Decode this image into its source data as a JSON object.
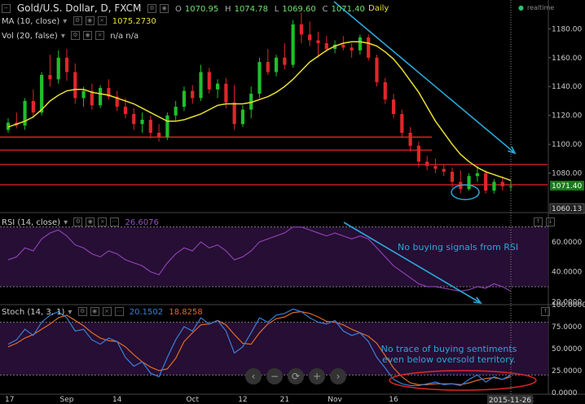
{
  "header": {
    "collapse_icon": "minus-box-icon",
    "symbol_title": "Gold/U.S. Dollar, D, FXCM",
    "ohlc": [
      {
        "label": "O",
        "value": "1070.95"
      },
      {
        "label": "H",
        "value": "1074.78"
      },
      {
        "label": "L",
        "value": "1069.60"
      },
      {
        "label": "C",
        "value": "1071.40"
      }
    ],
    "interval_label": "Daily",
    "realtime_label": "realtime",
    "realtime_color": "#2fbf71"
  },
  "indicators": {
    "ma_label": "MA (10, close)",
    "ma_value": "1075.2730",
    "vol_label": "Vol (20, false)",
    "vol_value": "n/a n/a",
    "rsi_label": "RSI (14, close)",
    "rsi_value": "26.6076",
    "stoch_label": "Stoch (14, 3, 1)",
    "stoch_k": "20.1502",
    "stoch_d": "18.8258"
  },
  "price_axis": {
    "ticks": [
      "1180.00",
      "1160.00",
      "1140.00",
      "1120.00",
      "1100.00",
      "1080.00"
    ],
    "last_price": "1071.40",
    "low_marker": "1060.13"
  },
  "rsi_axis": {
    "ticks": [
      "60.0000",
      "40.0000",
      "20.0000"
    ]
  },
  "stoch_axis": {
    "ticks": [
      "100.0000",
      "75.0000",
      "50.0000",
      "25.0000",
      "0.0000"
    ]
  },
  "time_axis": {
    "ticks": [
      "17",
      "Sep",
      "14",
      "Oct",
      "12",
      "21",
      "Nov",
      "16",
      "ec"
    ],
    "cursor_date": "2015-11-26"
  },
  "annotations": {
    "rsi_note": "No buying signals from RSI",
    "stoch_note_1": "No trace of buying sentiments",
    "stoch_note_2": "even below oversold territory."
  },
  "nav_buttons": [
    {
      "name": "scroll-left-button",
      "glyph": "‹"
    },
    {
      "name": "zoom-out-button",
      "glyph": "−"
    },
    {
      "name": "reset-button",
      "glyph": "⟳"
    },
    {
      "name": "zoom-in-button",
      "glyph": "+"
    },
    {
      "name": "scroll-right-button",
      "glyph": "›"
    }
  ],
  "colors": {
    "bull": "#1fbf2a",
    "bear": "#e0262a",
    "ma": "#e8e030",
    "rsi": "#8b3fb0",
    "stoch_k": "#3a7fd8",
    "stoch_d": "#e06a2a",
    "annotation": "#2aa7d8",
    "sr_line": "#e0262a",
    "band": "#2a0f3a",
    "last_price_tag": "#1a7a1a"
  },
  "chart_data": {
    "type": "candlestick",
    "title": "Gold/U.S. Dollar, D, FXCM",
    "ylim": [
      1055,
      1192
    ],
    "support_resistance": [
      1105,
      1096,
      1086,
      1072
    ],
    "candles": [
      [
        1110,
        1118,
        1108,
        1115
      ],
      [
        1115,
        1122,
        1111,
        1113
      ],
      [
        1113,
        1132,
        1110,
        1130
      ],
      [
        1130,
        1138,
        1118,
        1122
      ],
      [
        1122,
        1150,
        1120,
        1148
      ],
      [
        1148,
        1162,
        1140,
        1145
      ],
      [
        1145,
        1165,
        1142,
        1160
      ],
      [
        1160,
        1166,
        1144,
        1150
      ],
      [
        1150,
        1156,
        1128,
        1132
      ],
      [
        1132,
        1140,
        1126,
        1137
      ],
      [
        1137,
        1142,
        1124,
        1127
      ],
      [
        1127,
        1141,
        1125,
        1139
      ],
      [
        1139,
        1145,
        1131,
        1133
      ],
      [
        1133,
        1137,
        1123,
        1126
      ],
      [
        1126,
        1132,
        1118,
        1121
      ],
      [
        1121,
        1125,
        1110,
        1114
      ],
      [
        1114,
        1122,
        1108,
        1117
      ],
      [
        1117,
        1120,
        1104,
        1108
      ],
      [
        1108,
        1114,
        1102,
        1105
      ],
      [
        1105,
        1122,
        1103,
        1120
      ],
      [
        1120,
        1130,
        1116,
        1126
      ],
      [
        1126,
        1140,
        1123,
        1137
      ],
      [
        1137,
        1141,
        1128,
        1132
      ],
      [
        1132,
        1155,
        1130,
        1150
      ],
      [
        1150,
        1153,
        1135,
        1138
      ],
      [
        1138,
        1145,
        1132,
        1142
      ],
      [
        1142,
        1146,
        1125,
        1129
      ],
      [
        1129,
        1141,
        1110,
        1114
      ],
      [
        1114,
        1127,
        1112,
        1124
      ],
      [
        1124,
        1140,
        1118,
        1135
      ],
      [
        1135,
        1160,
        1132,
        1157
      ],
      [
        1157,
        1166,
        1148,
        1150
      ],
      [
        1150,
        1162,
        1147,
        1160
      ],
      [
        1160,
        1170,
        1152,
        1155
      ],
      [
        1155,
        1186,
        1153,
        1183
      ],
      [
        1183,
        1191,
        1170,
        1176
      ],
      [
        1176,
        1185,
        1168,
        1172
      ],
      [
        1172,
        1178,
        1160,
        1170
      ],
      [
        1170,
        1175,
        1164,
        1166
      ],
      [
        1166,
        1172,
        1163,
        1169
      ],
      [
        1169,
        1175,
        1165,
        1167
      ],
      [
        1167,
        1170,
        1160,
        1165
      ],
      [
        1165,
        1176,
        1162,
        1174
      ],
      [
        1174,
        1176,
        1158,
        1160
      ],
      [
        1160,
        1162,
        1140,
        1143
      ],
      [
        1143,
        1146,
        1128,
        1131
      ],
      [
        1131,
        1135,
        1118,
        1121
      ],
      [
        1121,
        1124,
        1105,
        1108
      ],
      [
        1108,
        1112,
        1095,
        1099
      ],
      [
        1099,
        1102,
        1084,
        1088
      ],
      [
        1088,
        1092,
        1082,
        1085
      ],
      [
        1085,
        1090,
        1080,
        1083
      ],
      [
        1083,
        1086,
        1078,
        1081
      ],
      [
        1081,
        1084,
        1070,
        1074
      ],
      [
        1074,
        1082,
        1066,
        1069
      ],
      [
        1069,
        1080,
        1068,
        1078
      ],
      [
        1078,
        1085,
        1074,
        1080
      ],
      [
        1080,
        1082,
        1066,
        1068
      ],
      [
        1068,
        1076,
        1066,
        1074
      ],
      [
        1074,
        1078,
        1068,
        1071
      ],
      [
        1071,
        1075,
        1068,
        1071
      ]
    ],
    "ma10": [
      1112,
      1114,
      1116,
      1119,
      1124,
      1130,
      1134,
      1137,
      1138,
      1138,
      1136,
      1135,
      1134,
      1132,
      1130,
      1128,
      1125,
      1122,
      1119,
      1116,
      1116,
      1117,
      1119,
      1121,
      1124,
      1127,
      1128,
      1128,
      1128,
      1129,
      1131,
      1133,
      1136,
      1140,
      1145,
      1151,
      1157,
      1161,
      1165,
      1168,
      1170,
      1171,
      1171,
      1170,
      1168,
      1164,
      1159,
      1152,
      1144,
      1136,
      1126,
      1116,
      1108,
      1100,
      1093,
      1088,
      1084,
      1081,
      1079,
      1077,
      1075
    ],
    "rsi": [
      48,
      50,
      56,
      54,
      62,
      66,
      68,
      64,
      58,
      56,
      52,
      50,
      54,
      52,
      48,
      46,
      44,
      40,
      38,
      46,
      52,
      56,
      54,
      60,
      56,
      58,
      54,
      48,
      50,
      54,
      60,
      62,
      64,
      66,
      70,
      70,
      68,
      66,
      64,
      66,
      64,
      62,
      64,
      62,
      56,
      50,
      44,
      40,
      36,
      32,
      30,
      30,
      29,
      28,
      27,
      28,
      30,
      29,
      32,
      30,
      27
    ],
    "rsi_ylim": [
      18,
      70
    ],
    "stoch_k": [
      55,
      60,
      72,
      65,
      80,
      88,
      92,
      85,
      70,
      72,
      60,
      55,
      62,
      58,
      40,
      30,
      35,
      22,
      18,
      40,
      60,
      75,
      70,
      85,
      78,
      82,
      70,
      45,
      52,
      68,
      85,
      80,
      88,
      90,
      95,
      92,
      85,
      80,
      78,
      82,
      70,
      65,
      68,
      58,
      40,
      28,
      15,
      10,
      8,
      8,
      10,
      12,
      9,
      10,
      8,
      15,
      20,
      12,
      18,
      15,
      20
    ],
    "stoch_d": [
      52,
      56,
      62,
      66,
      72,
      78,
      85,
      88,
      82,
      76,
      68,
      62,
      59,
      58,
      52,
      43,
      35,
      29,
      25,
      27,
      39,
      58,
      68,
      77,
      78,
      82,
      77,
      66,
      56,
      55,
      68,
      78,
      84,
      86,
      91,
      92,
      90,
      86,
      81,
      80,
      77,
      72,
      68,
      64,
      56,
      42,
      28,
      18,
      11,
      9,
      9,
      10,
      10,
      10,
      9,
      11,
      14,
      16,
      17,
      15,
      18
    ],
    "stoch_ylim": [
      0,
      100
    ],
    "stoch_bands": [
      20,
      80
    ]
  }
}
